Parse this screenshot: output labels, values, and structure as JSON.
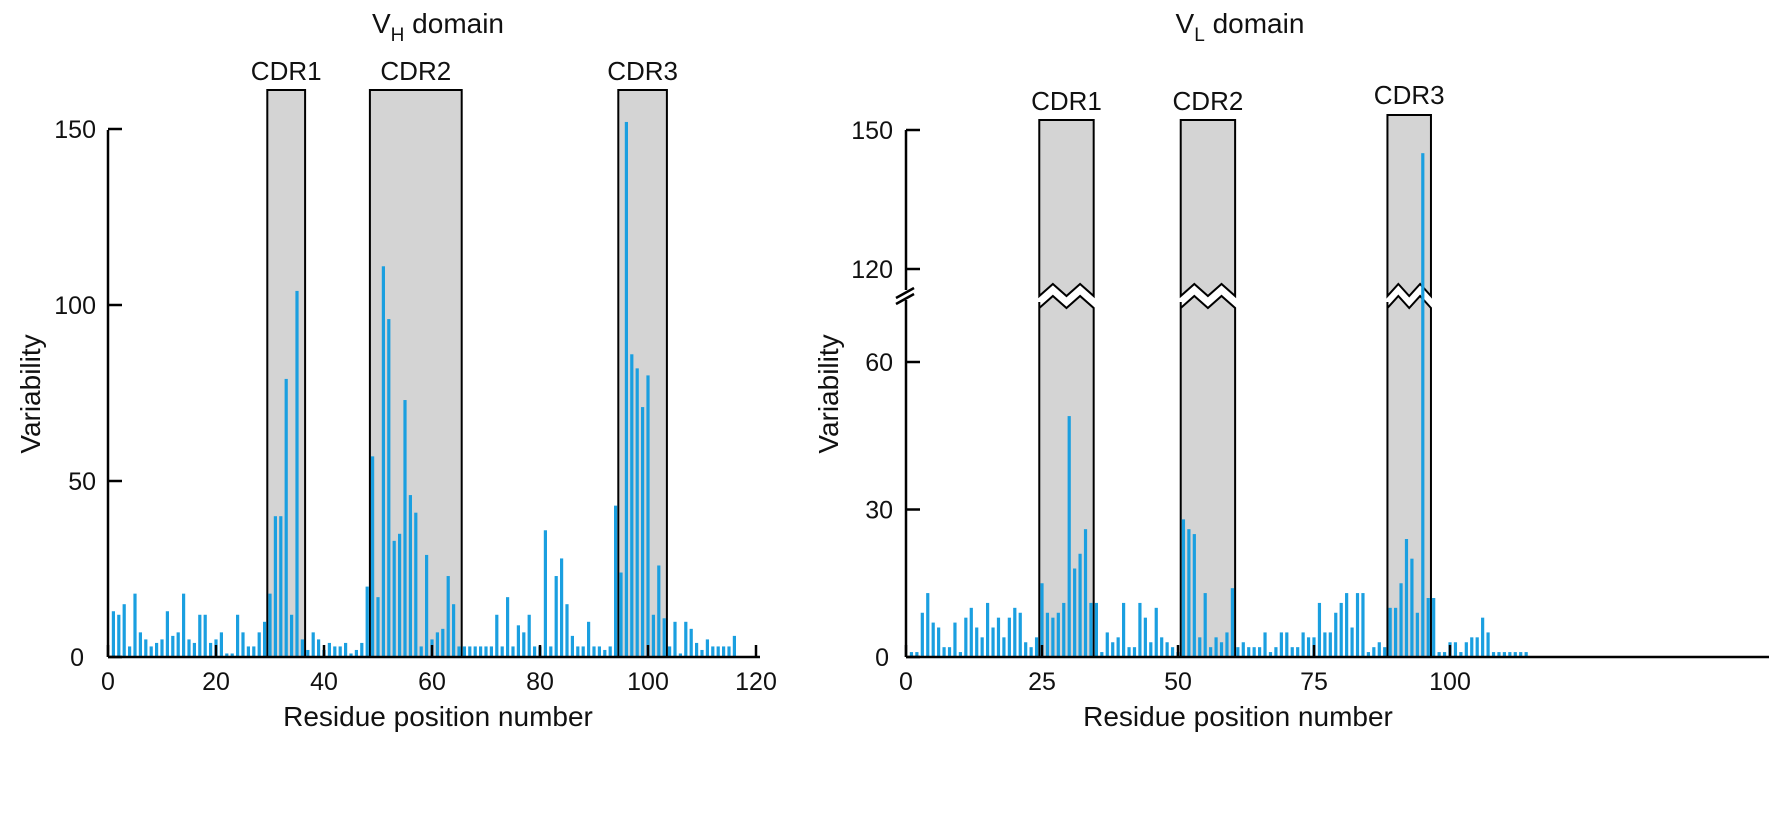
{
  "colors": {
    "bar": "#1a9fe0",
    "cdr_fill": "#d4d4d4",
    "axis": "#000000"
  },
  "chart_data": [
    {
      "type": "bar",
      "title": "VH domain",
      "title_main": "V",
      "title_sub": "H",
      "title_rest": " domain",
      "xlabel": "Residue position number",
      "ylabel": "Variability",
      "xlim": [
        0,
        122
      ],
      "ylim": [
        0,
        150
      ],
      "xticks": [
        0,
        20,
        40,
        60,
        80,
        100,
        120
      ],
      "xtick_labels": [
        "0",
        "20",
        "40",
        "60",
        "80",
        "100",
        "120"
      ],
      "yticks": [
        0,
        50,
        100,
        150
      ],
      "ytick_labels": [
        "0",
        "50",
        "100",
        "150"
      ],
      "regions": [
        {
          "label": "CDR1",
          "start": 29.5,
          "end": 36.5
        },
        {
          "label": "CDR2",
          "start": 48.5,
          "end": 65.5
        },
        {
          "label": "CDR3",
          "start": 94.5,
          "end": 103.5
        }
      ],
      "x": [
        1,
        2,
        3,
        4,
        5,
        6,
        7,
        8,
        9,
        10,
        11,
        12,
        13,
        14,
        15,
        16,
        17,
        18,
        19,
        20,
        21,
        22,
        23,
        24,
        25,
        26,
        27,
        28,
        29,
        30,
        31,
        32,
        33,
        34,
        35,
        36,
        37,
        38,
        39,
        40,
        41,
        42,
        43,
        44,
        45,
        46,
        47,
        48,
        49,
        50,
        51,
        52,
        53,
        54,
        55,
        56,
        57,
        58,
        59,
        60,
        61,
        62,
        63,
        64,
        65,
        66,
        67,
        68,
        69,
        70,
        71,
        72,
        73,
        74,
        75,
        76,
        77,
        78,
        79,
        80,
        81,
        82,
        83,
        84,
        85,
        86,
        87,
        88,
        89,
        90,
        91,
        92,
        93,
        94,
        95,
        96,
        97,
        98,
        99,
        100,
        101,
        102,
        103,
        104,
        105,
        106,
        107,
        108,
        109,
        110,
        111,
        112,
        113,
        114,
        115,
        116
      ],
      "values": [
        13,
        12,
        15,
        3,
        18,
        7,
        5,
        3,
        4,
        5,
        13,
        6,
        7,
        18,
        5,
        4,
        12,
        12,
        4,
        5,
        7,
        1,
        1,
        12,
        7,
        3,
        3,
        7,
        10,
        18,
        40,
        40,
        79,
        12,
        104,
        5,
        2,
        7,
        5,
        2,
        4,
        3,
        3,
        4,
        1,
        2,
        4,
        20,
        57,
        17,
        111,
        96,
        33,
        35,
        73,
        46,
        41,
        3,
        29,
        5,
        7,
        8,
        23,
        15,
        3,
        3,
        3,
        3,
        3,
        3,
        3,
        12,
        3,
        17,
        3,
        9,
        7,
        12,
        3,
        3,
        36,
        3,
        23,
        28,
        15,
        6,
        3,
        3,
        10,
        3,
        3,
        2,
        3,
        43,
        24,
        152,
        86,
        82,
        71,
        80,
        12,
        26,
        11,
        3,
        10,
        1,
        10,
        8,
        4,
        2,
        5,
        3,
        3,
        3,
        3,
        6
      ]
    },
    {
      "type": "bar",
      "title": "VL domain",
      "title_main": "V",
      "title_sub": "L",
      "title_rest": " domain",
      "xlabel": "Residue position number",
      "ylabel": "Variability",
      "xlim": [
        0,
        108
      ],
      "y_axis_break": {
        "lower_range": [
          0,
          70
        ],
        "upper_range": [
          110,
          150
        ]
      },
      "xticks": [
        0,
        25,
        50,
        75,
        100
      ],
      "xtick_labels": [
        "0",
        "25",
        "50",
        "75",
        "100"
      ],
      "yticks": [
        0,
        30,
        60,
        120,
        150
      ],
      "ytick_labels": [
        "0",
        "30",
        "60",
        "120",
        "150"
      ],
      "regions": [
        {
          "label": "CDR1",
          "start": 24.5,
          "end": 34.5
        },
        {
          "label": "CDR2",
          "start": 50.5,
          "end": 60.5
        },
        {
          "label": "CDR3",
          "start": 88.5,
          "end": 96.5
        }
      ],
      "x": [
        1,
        2,
        3,
        4,
        5,
        6,
        7,
        8,
        9,
        10,
        11,
        12,
        13,
        14,
        15,
        16,
        17,
        18,
        19,
        20,
        21,
        22,
        23,
        24,
        25,
        26,
        27,
        28,
        29,
        30,
        31,
        32,
        33,
        34,
        35,
        36,
        37,
        38,
        39,
        40,
        41,
        42,
        43,
        44,
        45,
        46,
        47,
        48,
        49,
        50,
        51,
        52,
        53,
        54,
        55,
        56,
        57,
        58,
        59,
        60,
        61,
        62,
        63,
        64,
        65,
        66,
        67,
        68,
        69,
        70,
        71,
        72,
        73,
        74,
        75,
        76,
        77,
        78,
        79,
        80,
        81,
        82,
        83,
        84,
        85,
        86,
        87,
        88,
        89,
        90,
        91,
        92,
        93,
        94,
        95,
        96,
        97,
        98,
        99,
        100,
        101,
        102,
        103,
        104,
        105,
        106,
        107,
        108,
        109,
        110,
        111,
        112,
        113,
        114
      ],
      "values": [
        1,
        1,
        9,
        13,
        7,
        6,
        2,
        2,
        7,
        1,
        8,
        10,
        6,
        4,
        11,
        6,
        8,
        4,
        8,
        10,
        9,
        3,
        2,
        4,
        15,
        9,
        8,
        9,
        11,
        49,
        18,
        21,
        26,
        11,
        11,
        1,
        5,
        3,
        4,
        11,
        2,
        2,
        11,
        8,
        3,
        10,
        4,
        3,
        2,
        1,
        28,
        26,
        25,
        4,
        13,
        2,
        4,
        3,
        5,
        14,
        2,
        3,
        2,
        2,
        2,
        5,
        1,
        2,
        5,
        5,
        2,
        2,
        5,
        4,
        4,
        11,
        5,
        5,
        9,
        11,
        13,
        6,
        13,
        13,
        1,
        2,
        3,
        2,
        10,
        10,
        15,
        24,
        20,
        9,
        145,
        12,
        12,
        1,
        1,
        3,
        3,
        1,
        3,
        4,
        4,
        8,
        5,
        1,
        1,
        1,
        1,
        1,
        1,
        1
      ]
    }
  ]
}
